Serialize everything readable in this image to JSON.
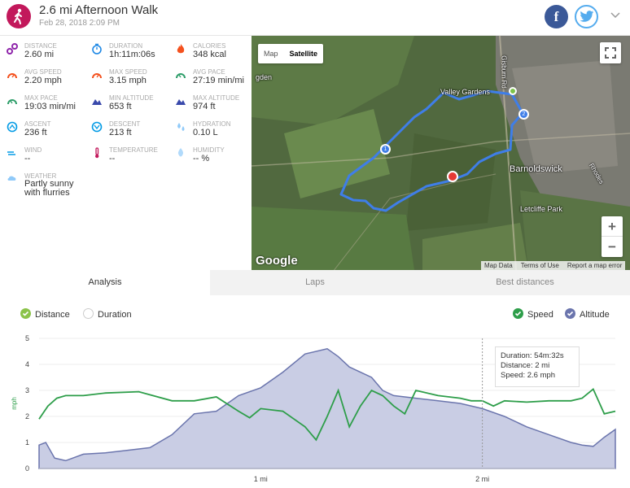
{
  "activity": {
    "title": "2.6 mi Afternoon Walk",
    "date": "Feb 28, 2018 2:09 PM"
  },
  "social": {
    "facebook_glyph": "f"
  },
  "stats": [
    {
      "label": "DISTANCE",
      "value": "2.60 mi",
      "icon": "distance-icon",
      "color": "#8e24aa"
    },
    {
      "label": "DURATION",
      "value": "1h:11m:06s",
      "icon": "stopwatch-icon",
      "color": "#1e88e5"
    },
    {
      "label": "CALORIES",
      "value": "348 kcal",
      "icon": "flame-icon",
      "color": "#f4511e"
    },
    {
      "label": "AVG SPEED",
      "value": "2.20 mph",
      "icon": "speedometer-icon",
      "color": "#f4511e"
    },
    {
      "label": "MAX SPEED",
      "value": "3.15 mph",
      "icon": "speedometer-icon",
      "color": "#f4511e"
    },
    {
      "label": "AVG PACE",
      "value": "27:19 min/mi",
      "icon": "pace-gauge-icon",
      "color": "#2e9e6a"
    },
    {
      "label": "MAX PACE",
      "value": "19:03 min/mi",
      "icon": "pace-gauge-icon",
      "color": "#2e9e6a"
    },
    {
      "label": "MIN ALTITUDE",
      "value": "653 ft",
      "icon": "mountain-icon",
      "color": "#3949ab"
    },
    {
      "label": "MAX ALTITUDE",
      "value": "974 ft",
      "icon": "mountain-icon",
      "color": "#3949ab"
    },
    {
      "label": "ASCENT",
      "value": "236 ft",
      "icon": "ascent-icon",
      "color": "#039be5"
    },
    {
      "label": "DESCENT",
      "value": "213 ft",
      "icon": "descent-icon",
      "color": "#039be5"
    },
    {
      "label": "HYDRATION",
      "value": "0.10 L",
      "icon": "water-drops-icon",
      "color": "#90caf9"
    },
    {
      "label": "WIND",
      "value": "--",
      "icon": "wind-icon",
      "color": "#039be5"
    },
    {
      "label": "TEMPERATURE",
      "value": "--",
      "icon": "thermometer-icon",
      "color": "#c2185b"
    },
    {
      "label": "HUMIDITY",
      "value": "-- %",
      "icon": "humidity-icon",
      "color": "#90caf9"
    },
    {
      "label": "WEATHER",
      "value": "Partly sunny\nwith flurries",
      "icon": "weather-icon",
      "color": "#90caf9"
    }
  ],
  "map": {
    "type_map": "Map",
    "type_satellite": "Satellite",
    "zoom_in": "+",
    "zoom_out": "−",
    "logo": "Google",
    "footer": [
      "Map Data",
      "Terms of Use",
      "Report a map error"
    ],
    "places": [
      "Valley Gardens",
      "Barnoldswick",
      "Letcliffe Park",
      "Gisburn Rd",
      "gden",
      "Rhodes"
    ],
    "markers": [
      "1",
      "2"
    ]
  },
  "tabs": [
    "Analysis",
    "Laps",
    "Best distances"
  ],
  "legend": {
    "x_options": [
      "Distance",
      "Duration"
    ],
    "series": [
      "Speed",
      "Altitude"
    ],
    "colors": {
      "speed": "#2e9e4a",
      "altitude": "#6b75ad",
      "distance": "#8bc34a"
    }
  },
  "tooltip": {
    "duration": "Duration: 54m:32s",
    "distance": "Distance: 2 mi",
    "speed": "Speed: 2.6 mph"
  },
  "chart_data": {
    "type": "line",
    "ylabel": "mph",
    "ylim": [
      0,
      5
    ],
    "yticks": [
      "0",
      "1",
      "2",
      "3",
      "4",
      "5"
    ],
    "xlim": [
      0,
      2.6
    ],
    "xticks": [
      {
        "x": 1,
        "label": "1 mi"
      },
      {
        "x": 2,
        "label": "2 mi"
      }
    ],
    "cursor_x": 2,
    "series": [
      {
        "name": "Speed",
        "x": [
          0,
          0.04,
          0.08,
          0.12,
          0.2,
          0.3,
          0.45,
          0.6,
          0.7,
          0.8,
          0.9,
          0.95,
          1.0,
          1.1,
          1.2,
          1.25,
          1.3,
          1.35,
          1.4,
          1.45,
          1.5,
          1.55,
          1.6,
          1.65,
          1.7,
          1.8,
          1.9,
          1.95,
          2.0,
          2.05,
          2.1,
          2.2,
          2.3,
          2.4,
          2.45,
          2.5,
          2.55,
          2.6
        ],
        "values": [
          1.9,
          2.4,
          2.7,
          2.8,
          2.8,
          2.9,
          2.95,
          2.6,
          2.6,
          2.75,
          2.2,
          1.95,
          2.3,
          2.2,
          1.6,
          1.1,
          2.0,
          3.0,
          1.6,
          2.4,
          3.0,
          2.8,
          2.4,
          2.1,
          3.0,
          2.8,
          2.7,
          2.6,
          2.6,
          2.4,
          2.6,
          2.55,
          2.6,
          2.6,
          2.7,
          3.05,
          2.1,
          2.2
        ]
      },
      {
        "name": "Altitude",
        "x": [
          0,
          0.03,
          0.07,
          0.12,
          0.2,
          0.3,
          0.4,
          0.5,
          0.6,
          0.7,
          0.8,
          0.9,
          1.0,
          1.1,
          1.2,
          1.3,
          1.35,
          1.4,
          1.5,
          1.55,
          1.6,
          1.7,
          1.8,
          1.9,
          2.0,
          2.1,
          2.2,
          2.3,
          2.4,
          2.45,
          2.5,
          2.55,
          2.6
        ],
        "values": [
          0.9,
          1.0,
          0.4,
          0.3,
          0.55,
          0.6,
          0.7,
          0.8,
          1.3,
          2.1,
          2.2,
          2.8,
          3.1,
          3.7,
          4.4,
          4.6,
          4.3,
          3.9,
          3.5,
          3.0,
          2.8,
          2.7,
          2.6,
          2.5,
          2.3,
          2.0,
          1.6,
          1.3,
          1.0,
          0.9,
          0.85,
          1.2,
          1.5
        ]
      }
    ]
  }
}
